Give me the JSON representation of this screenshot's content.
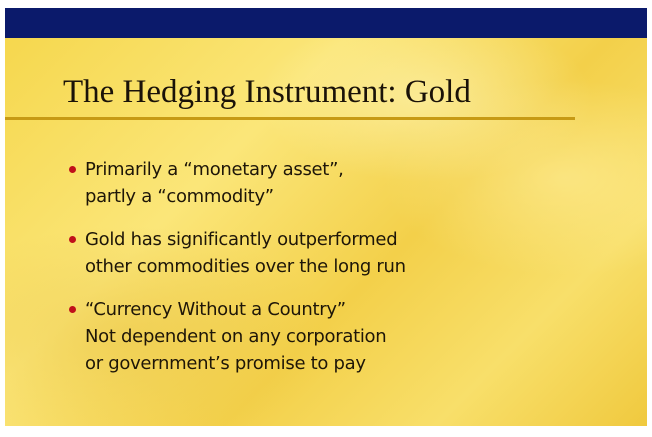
{
  "slide": {
    "title": "The Hedging Instrument: Gold",
    "bullets": [
      {
        "lines": [
          "Primarily a “monetary asset”,",
          "partly a “commodity”"
        ]
      },
      {
        "lines": [
          "Gold has significantly outperformed",
          "other commodities over the long run"
        ]
      },
      {
        "lines": [
          "“Currency Without a Country”",
          "Not dependent on any corporation",
          "or government’s promise to pay"
        ]
      }
    ]
  }
}
